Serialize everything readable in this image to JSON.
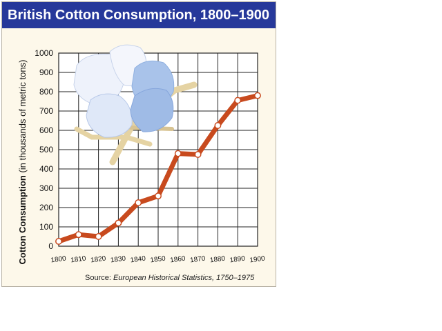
{
  "title": "British Cotton Consumption, 1800–1900",
  "source": {
    "prefix": "Source: ",
    "work": "European Historical Statistics, 1750–1975"
  },
  "colors": {
    "title_bg": "#26389a",
    "line": "#c84a1e",
    "background": "#fdf8ea",
    "grid": "#222222"
  },
  "icons": [
    "cotton-boll-illustration"
  ],
  "chart_data": {
    "type": "line",
    "title": "British Cotton Consumption, 1800–1900",
    "xlabel": "",
    "ylabel": "Cotton Consumption (in thousands of metric tons)",
    "ylabel_parts": {
      "main": "Cotton Consumption",
      "unit": "(in thousands of metric tons)"
    },
    "x": [
      1800,
      1810,
      1820,
      1830,
      1840,
      1850,
      1860,
      1870,
      1880,
      1890,
      1900
    ],
    "x_tick_labels": [
      "1800",
      "1810",
      "1820",
      "1830",
      "1840",
      "1850",
      "1860",
      "1870",
      "1880",
      "1890",
      "1900"
    ],
    "series": [
      {
        "values": [
          25,
          60,
          50,
          120,
          225,
          260,
          480,
          475,
          625,
          755,
          780
        ]
      }
    ],
    "y_ticks": [
      0,
      100,
      200,
      300,
      400,
      500,
      600,
      700,
      800,
      900,
      1000
    ],
    "ylim": [
      0,
      1000
    ],
    "xlim": [
      1800,
      1900
    ],
    "grid": true,
    "legend": "none"
  }
}
